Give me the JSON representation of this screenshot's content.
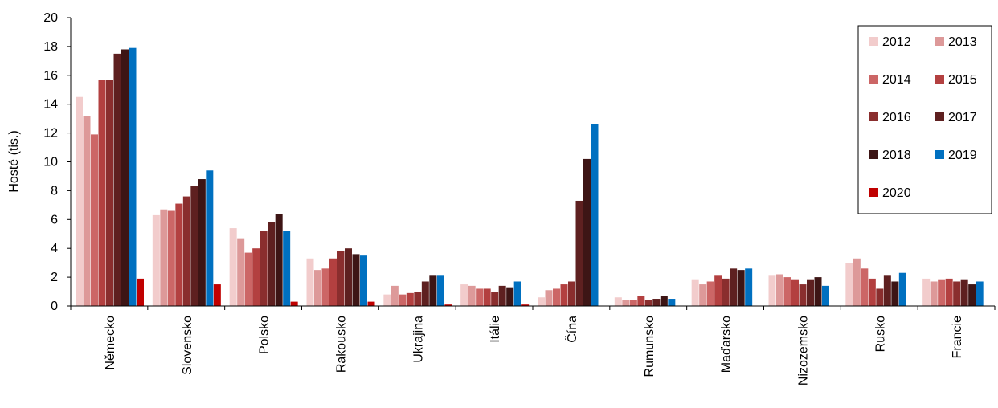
{
  "chart_data": {
    "type": "bar",
    "ylabel": "Hosté (tis.)",
    "xlabel": "",
    "ylim": [
      0,
      20
    ],
    "yticks": [
      0,
      2,
      4,
      6,
      8,
      10,
      12,
      14,
      16,
      18,
      20
    ],
    "grid": false,
    "legend_position": "top-right",
    "categories": [
      "Německo",
      "Slovensko",
      "Polsko",
      "Rakousko",
      "Ukrajina",
      "Itálie",
      "Čína",
      "Rumunsko",
      "Maďarsko",
      "Nizozemsko",
      "Rusko",
      "Francie"
    ],
    "series": [
      {
        "name": "2012",
        "color": "#f2cccc",
        "values": [
          14.5,
          6.3,
          5.4,
          3.3,
          0.8,
          1.5,
          0.6,
          0.6,
          1.8,
          2.1,
          3.0,
          1.9
        ]
      },
      {
        "name": "2013",
        "color": "#dd9999",
        "values": [
          13.2,
          6.7,
          4.7,
          2.5,
          1.4,
          1.4,
          1.1,
          0.4,
          1.5,
          2.2,
          3.3,
          1.7
        ]
      },
      {
        "name": "2014",
        "color": "#cc6666",
        "values": [
          11.9,
          6.6,
          3.7,
          2.6,
          0.8,
          1.2,
          1.2,
          0.4,
          1.7,
          2.0,
          2.6,
          1.8
        ]
      },
      {
        "name": "2015",
        "color": "#b34040",
        "values": [
          15.7,
          7.1,
          4.0,
          3.3,
          0.9,
          1.2,
          1.5,
          0.7,
          2.1,
          1.8,
          1.9,
          1.9
        ]
      },
      {
        "name": "2016",
        "color": "#8a2e2e",
        "values": [
          15.7,
          7.6,
          5.2,
          3.8,
          1.0,
          1.0,
          1.7,
          0.4,
          1.9,
          1.5,
          1.2,
          1.7
        ]
      },
      {
        "name": "2017",
        "color": "#5e2020",
        "values": [
          17.5,
          8.3,
          5.8,
          4.0,
          1.7,
          1.4,
          7.3,
          0.5,
          2.6,
          1.8,
          2.1,
          1.8
        ]
      },
      {
        "name": "2018",
        "color": "#3d1515",
        "values": [
          17.8,
          8.8,
          6.4,
          3.6,
          2.1,
          1.3,
          10.2,
          0.7,
          2.5,
          2.0,
          1.7,
          1.5
        ]
      },
      {
        "name": "2019",
        "color": "#0070c0",
        "values": [
          17.9,
          9.4,
          5.2,
          3.5,
          2.1,
          1.7,
          12.6,
          0.5,
          2.6,
          1.4,
          2.3,
          1.7
        ]
      },
      {
        "name": "2020",
        "color": "#c00000",
        "values": [
          1.9,
          1.5,
          0.3,
          0.3,
          0.1,
          0.1,
          0.0,
          0.0,
          0.0,
          0.0,
          0.0,
          0.0
        ]
      }
    ]
  }
}
